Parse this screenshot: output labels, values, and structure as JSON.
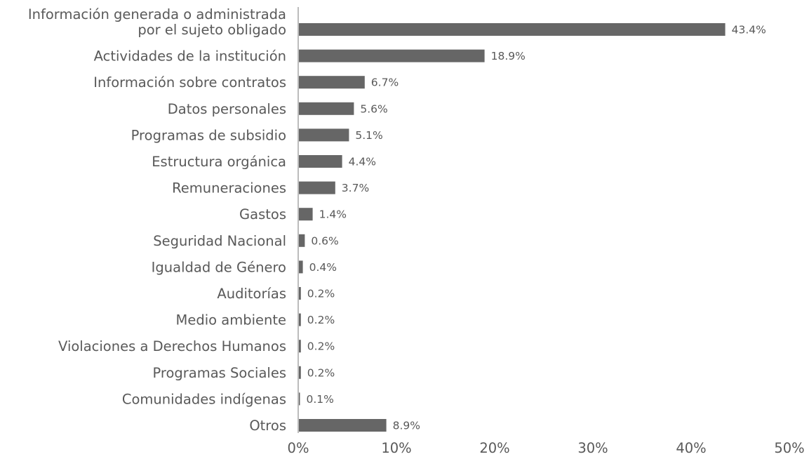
{
  "chart_data": {
    "type": "bar",
    "orientation": "horizontal",
    "title": "",
    "xlabel": "",
    "ylabel": "",
    "categories": [
      "Información generada o administrada por el sujeto obligado",
      "Actividades de la institución",
      "Información sobre contratos",
      "Datos personales",
      "Programas de subsidio",
      "Estructura orgánica",
      "Remuneraciones",
      "Gastos",
      "Seguridad Nacional",
      "Igualdad de Género",
      "Auditorías",
      "Medio ambiente",
      "Violaciones a Derechos Humanos",
      "Programas Sociales",
      "Comunidades indígenas",
      "Otros"
    ],
    "values": [
      43.4,
      18.9,
      6.7,
      5.6,
      5.1,
      4.4,
      3.7,
      1.4,
      0.6,
      0.4,
      0.2,
      0.2,
      0.2,
      0.2,
      0.1,
      8.9
    ],
    "value_labels": [
      "43.4%",
      "18.9%",
      "6.7%",
      "5.6%",
      "5.1%",
      "4.4%",
      "3.7%",
      "1.4%",
      "0.6%",
      "0.4%",
      "0.2%",
      "0.2%",
      "0.2%",
      "0.2%",
      "0.1%",
      "8.9%"
    ],
    "xlim": [
      0,
      50
    ],
    "x_ticks": [
      0,
      10,
      20,
      30,
      40,
      50
    ],
    "x_tick_labels": [
      "0%",
      "10%",
      "20%",
      "30%",
      "40%",
      "50%"
    ],
    "grid": false,
    "legend": "none",
    "colors": {
      "bar": "#666666",
      "text": "#595959",
      "axis": "#a6a6a6"
    }
  }
}
